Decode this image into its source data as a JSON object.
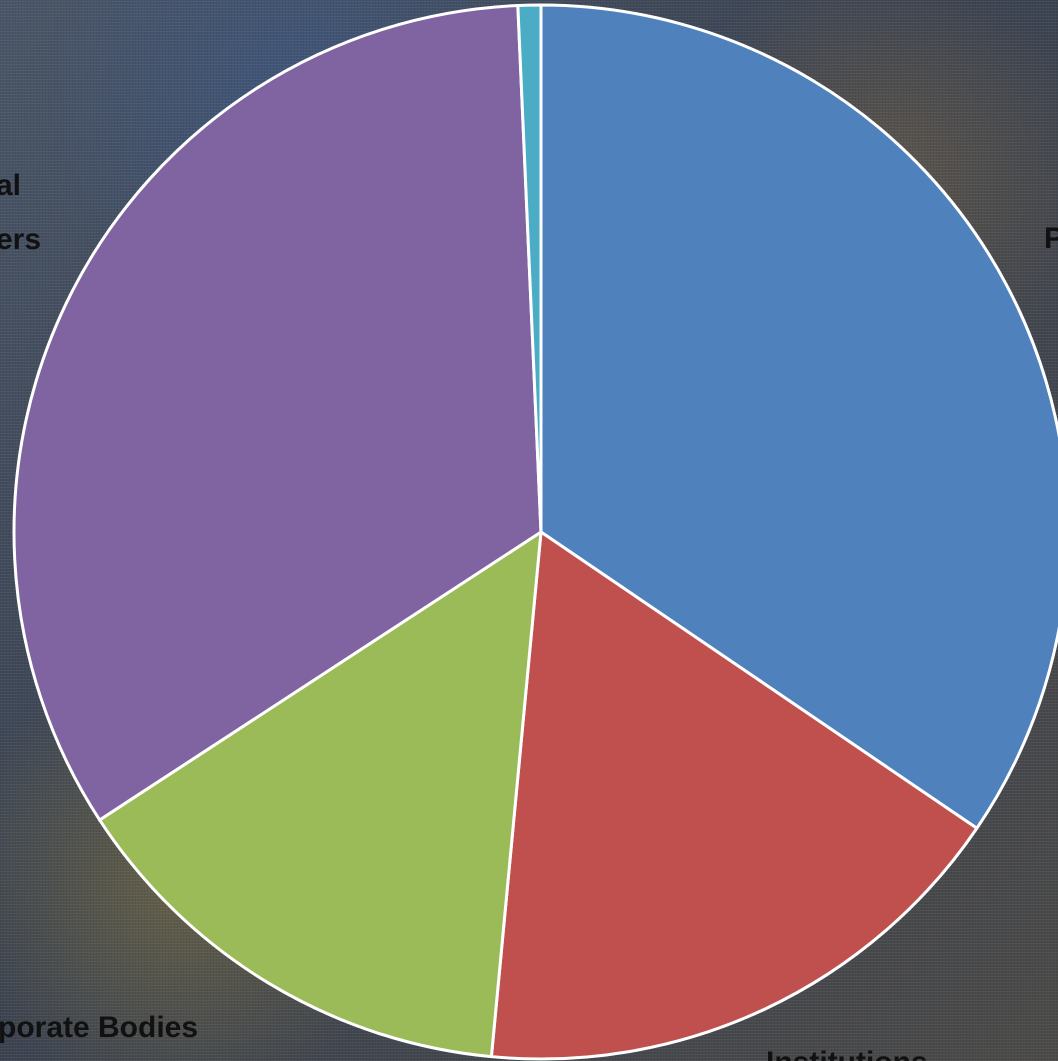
{
  "chart_data": {
    "type": "pie",
    "start_angle_deg": 0,
    "direction": "clockwise",
    "slices": [
      {
        "label": "P",
        "value": 34.5,
        "color": "#4f81bd"
      },
      {
        "label": "Institutions",
        "value": 17.0,
        "color": "#c0504d"
      },
      {
        "label": "Corporate Bodies",
        "value": 14.3,
        "color": "#9bbb59"
      },
      {
        "label": "al\ners",
        "value": 33.5,
        "color": "#8064a2"
      },
      {
        "label": "",
        "value": 0.7,
        "color": "#4bacc6"
      }
    ],
    "visible_labels": {
      "top_left_line1": "al",
      "top_left_line2": "ers",
      "right": "P",
      "bottom_left": "porate Bodies",
      "bottom": "Institutions"
    },
    "legend": "none",
    "slice_border_color": "#ffffff"
  }
}
